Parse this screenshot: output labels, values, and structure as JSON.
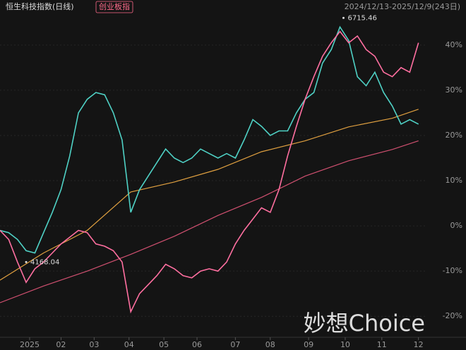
{
  "chart_data": {
    "type": "line",
    "title": "恒生科技指数(日线)",
    "compare_label": "创业板指",
    "range": "2024/12/13-2025/12/9(243日)",
    "watermark": "妙想Choice",
    "x": [
      0,
      5,
      10,
      15,
      20,
      25,
      30,
      35,
      40,
      45,
      50,
      55,
      60,
      65,
      70,
      75,
      80,
      85,
      90,
      95,
      100,
      105,
      110,
      115,
      120,
      125,
      130,
      135,
      140,
      145,
      150,
      155,
      160,
      165,
      170,
      175,
      180,
      185,
      190,
      195,
      200,
      205,
      210,
      215,
      220,
      225,
      230,
      235,
      240
    ],
    "xlim": [
      0,
      245
    ],
    "xticks": [
      {
        "value": 17,
        "label": "2025"
      },
      {
        "value": 35,
        "label": "02"
      },
      {
        "value": 54,
        "label": "03"
      },
      {
        "value": 74,
        "label": "04"
      },
      {
        "value": 94,
        "label": "05"
      },
      {
        "value": 113,
        "label": "06"
      },
      {
        "value": 135,
        "label": "07"
      },
      {
        "value": 155,
        "label": "08"
      },
      {
        "value": 177,
        "label": "09"
      },
      {
        "value": 198,
        "label": "10"
      },
      {
        "value": 219,
        "label": "11"
      },
      {
        "value": 240,
        "label": "12"
      }
    ],
    "ylim": [
      -23.4,
      48.4
    ],
    "yticks": [
      {
        "value": -20,
        "label": "-20%"
      },
      {
        "value": -10,
        "label": "-10%"
      },
      {
        "value": 0,
        "label": "0%"
      },
      {
        "value": 10,
        "label": "10%"
      },
      {
        "value": 20,
        "label": "20%"
      },
      {
        "value": 30,
        "label": "30%"
      },
      {
        "value": 40,
        "label": "40%"
      }
    ],
    "grid": true,
    "series": [
      {
        "name": "恒生科技指数",
        "color": "#4fd1c5",
        "values": [
          -1,
          -1.5,
          -3,
          -5.5,
          -6,
          -1.5,
          3,
          8,
          15.5,
          25,
          28,
          29.5,
          29,
          25,
          19,
          3,
          8,
          11,
          14,
          17,
          15,
          14,
          15,
          17,
          16,
          15,
          16,
          15,
          19,
          23.5,
          22,
          20,
          21,
          21,
          25,
          28,
          29.5,
          36,
          39,
          44,
          41,
          33,
          31,
          34,
          29.5,
          26.5,
          22.5,
          23.5,
          22.5
        ]
      },
      {
        "name": "创业板指",
        "color": "#ff6fa0",
        "values": [
          -1,
          -3,
          -8,
          -12.5,
          -9.5,
          -8,
          -6,
          -4,
          -2.5,
          -1,
          -1.5,
          -4,
          -4.5,
          -5.5,
          -8,
          -19,
          -15,
          -13,
          -11,
          -8.5,
          -9.5,
          -11,
          -11.5,
          -10,
          -9.5,
          -10,
          -8,
          -4,
          -1,
          1.5,
          4,
          3,
          8,
          15.5,
          22,
          28,
          33,
          37.5,
          40.5,
          43,
          40.5,
          42,
          39,
          37.5,
          34,
          33,
          35,
          34,
          40.5
        ]
      }
    ],
    "ma_x": [
      0,
      25,
      50,
      75,
      100,
      125,
      150,
      175,
      200,
      225,
      240
    ],
    "moving_averages": [
      {
        "color": "#e0a040",
        "values": [
          -12,
          -6,
          -1,
          7.5,
          9.7,
          12.5,
          16.4,
          18.8,
          21.9,
          23.8,
          25.8
        ]
      },
      {
        "color": "#d05070",
        "values": [
          -17,
          -13.3,
          -10,
          -6.3,
          -2.3,
          2.3,
          6.3,
          11,
          14.4,
          16.9,
          18.8
        ]
      }
    ],
    "annotations": [
      {
        "text": "6715.46",
        "x": 197,
        "y": 46
      },
      {
        "text": "4168.04",
        "x": 15,
        "y": -8
      }
    ]
  }
}
